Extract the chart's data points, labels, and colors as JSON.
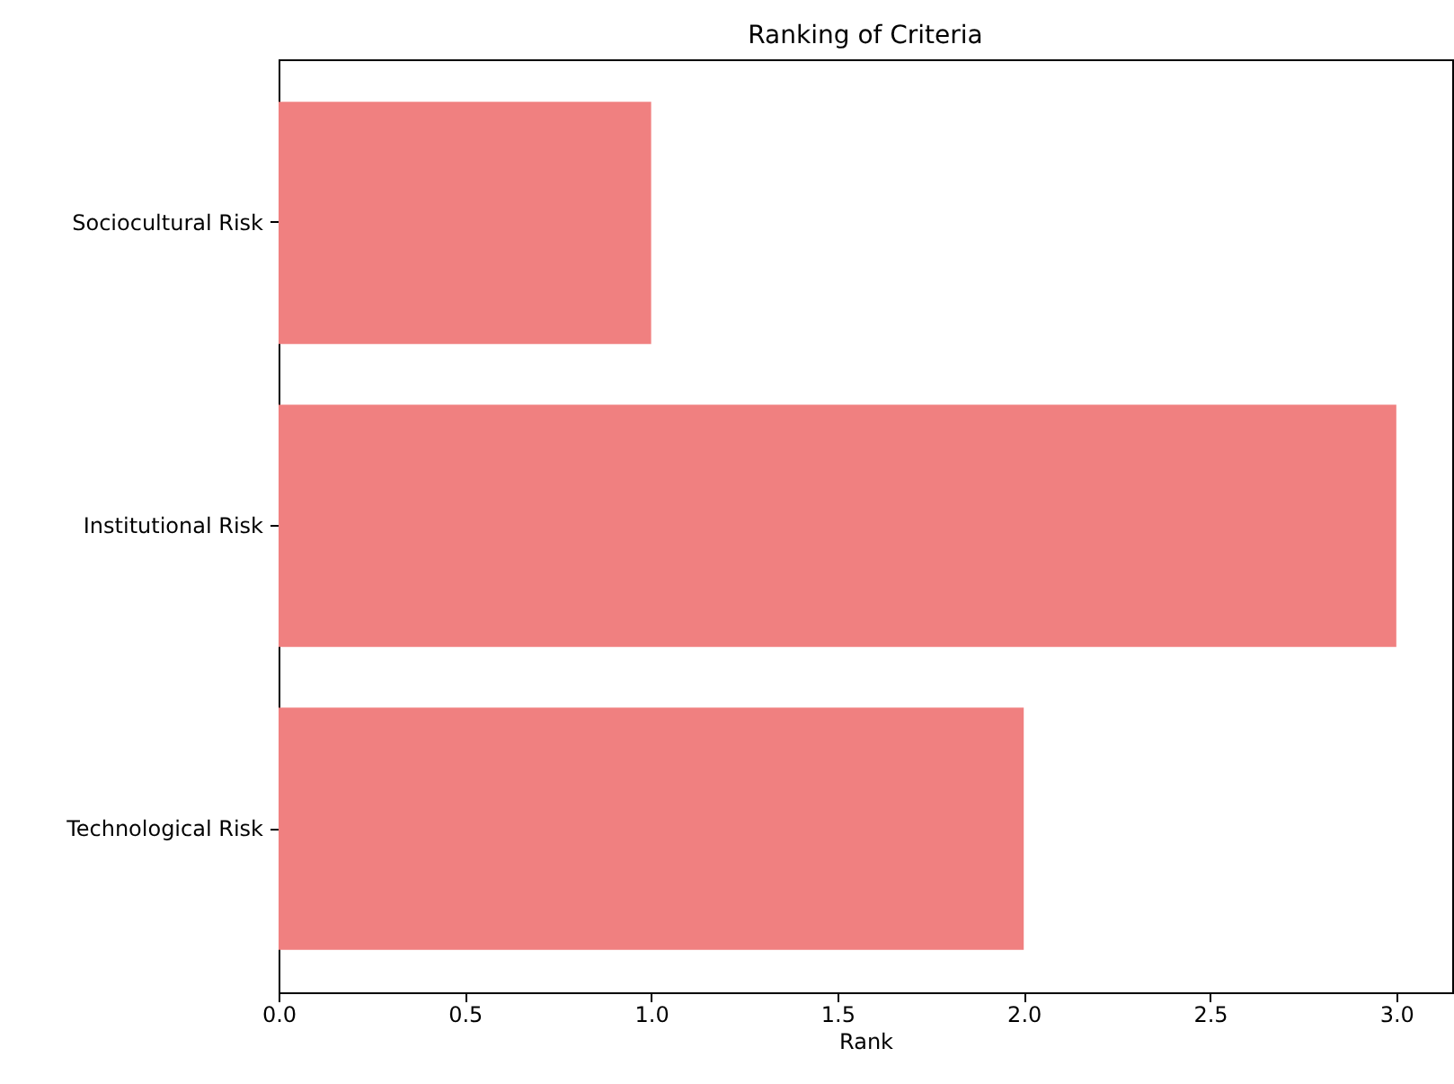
{
  "chart_data": {
    "type": "bar",
    "orientation": "horizontal",
    "title": "Ranking of Criteria",
    "xlabel": "Rank",
    "categories": [
      "Sociocultural Risk",
      "Institutional Risk",
      "Technological Risk"
    ],
    "values": [
      1,
      3,
      2
    ],
    "color": "#f08080",
    "xlim": [
      0,
      3.15
    ],
    "xticks": [
      {
        "value": 0,
        "label": "0.0"
      },
      {
        "value": 0.5,
        "label": "0.5"
      },
      {
        "value": 1,
        "label": "1.0"
      },
      {
        "value": 1.5,
        "label": "1.5"
      },
      {
        "value": 2,
        "label": "2.0"
      },
      {
        "value": 2.5,
        "label": "2.5"
      },
      {
        "value": 3,
        "label": "3.0"
      }
    ],
    "grid": false
  }
}
